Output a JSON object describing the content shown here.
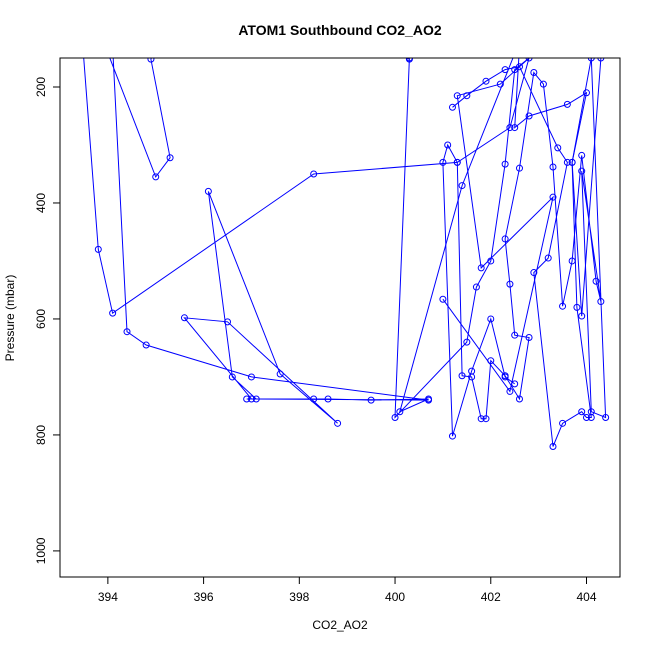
{
  "chart_data": {
    "type": "line",
    "title": "ATOM1 Southbound CO2_AO2",
    "xlabel": "CO2_AO2",
    "ylabel": "Pressure (mbar)",
    "xlim": [
      393.0,
      404.7
    ],
    "ylim": [
      1045,
      150
    ],
    "y_reversed": true,
    "xticks": [
      394,
      396,
      398,
      400,
      402,
      404
    ],
    "yticks": [
      200,
      400,
      600,
      800,
      1000
    ],
    "grid": false,
    "legend": "none",
    "color": "#0000ff",
    "marker": "open-circle",
    "series": [
      {
        "x": [
          393.45,
          393.8,
          394.1,
          398.3,
          401.3,
          402.4,
          403.0,
          402.8,
          401.4,
          400.1,
          400.7,
          399.5,
          398.6,
          398.3,
          396.9,
          397.1,
          396.6,
          396.1,
          397.6,
          398.8,
          396.5,
          395.6,
          397.0,
          400.7,
          397.0,
          394.8,
          394.4,
          394.1,
          393.9,
          395.0,
          395.3,
          394.9,
          395.0,
          399.1,
          400.3
        ],
        "y": [
          100,
          480,
          590,
          350,
          330,
          270,
          90,
          80,
          370,
          760,
          738,
          740,
          738,
          738,
          738,
          738,
          700,
          380,
          695,
          780,
          605,
          598,
          738,
          740,
          700,
          645,
          622,
          130,
          120,
          355,
          322,
          152,
          130,
          120,
          152
        ]
      },
      {
        "x": [
          401.2,
          401.5,
          401.9,
          402.3,
          402.6,
          403.4,
          403.6,
          403.2,
          402.9,
          403.3,
          403.5,
          403.9,
          404.0,
          404.1,
          403.8,
          403.7,
          404.1,
          404.4,
          404.1,
          403.9,
          404.3,
          404.2,
          403.9,
          403.7,
          403.5,
          403.3,
          403.1,
          402.9,
          402.6,
          402.3,
          402.4,
          402.5,
          402.8,
          402.6,
          402.3,
          402.0,
          401.9,
          401.8,
          401.6,
          401.4,
          401.3,
          401.1,
          401.0,
          401.2,
          401.6,
          402.0,
          402.3,
          402.5
        ],
        "y": [
          235,
          215,
          190,
          170,
          165,
          305,
          330,
          495,
          520,
          820,
          780,
          760,
          770,
          770,
          580,
          330,
          150,
          770,
          760,
          345,
          570,
          535,
          318,
          500,
          578,
          338,
          195,
          175,
          340,
          462,
          540,
          628,
          632,
          738,
          698,
          672,
          772,
          772,
          700,
          698,
          330,
          300,
          330,
          802,
          690,
          600,
          700,
          712
        ]
      },
      {
        "x": [
          401.0,
          402.4,
          403.3,
          401.8,
          401.3,
          402.2,
          402.8,
          402.5,
          402.3,
          402.0,
          401.7,
          401.5,
          400.0,
          400.3,
          402.6,
          402.5,
          402.8,
          403.6,
          404.0,
          403.7,
          403.9,
          404.3
        ],
        "y": [
          566,
          725,
          390,
          512,
          215,
          195,
          150,
          170,
          333,
          500,
          545,
          640,
          770,
          150,
          130,
          270,
          250,
          230,
          210,
          330,
          595,
          150
        ]
      }
    ]
  }
}
